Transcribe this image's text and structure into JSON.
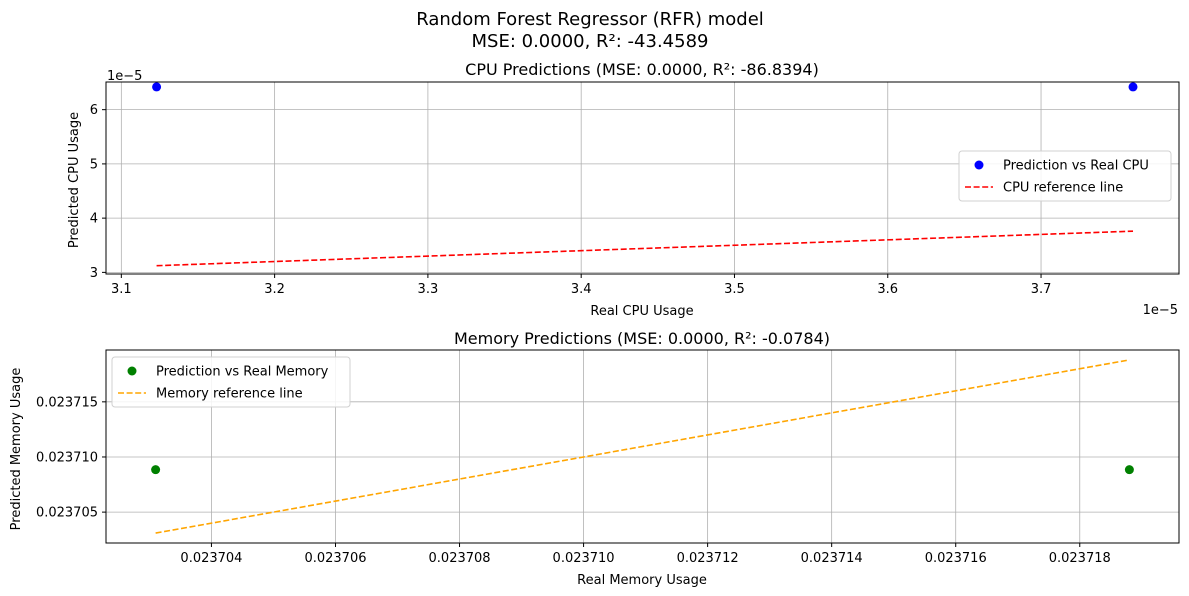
{
  "figure": {
    "title_line1": "Random Forest Regressor (RFR) model",
    "title_line2": "MSE: 0.0000, R²: -43.4589"
  },
  "chart_data": [
    {
      "type": "scatter",
      "title": "CPU Predictions (MSE: 0.0000, R²: -86.8394)",
      "xlabel": "Real CPU Usage",
      "ylabel": "Predicted CPU Usage",
      "x_scale_label": "1e−5",
      "y_scale_label": "1e−5",
      "xlim": [
        3.09,
        3.79
      ],
      "ylim": [
        2.97,
        6.51
      ],
      "x_ticks": [
        3.1,
        3.2,
        3.3,
        3.4,
        3.5,
        3.6,
        3.7
      ],
      "x_tick_labels": [
        "3.1",
        "3.2",
        "3.3",
        "3.4",
        "3.5",
        "3.6",
        "3.7"
      ],
      "y_ticks": [
        3,
        4,
        5,
        6
      ],
      "y_tick_labels": [
        "3",
        "4",
        "5",
        "6"
      ],
      "grid": true,
      "legend_position": "center-right",
      "series": [
        {
          "name": "Prediction vs Real CPU",
          "kind": "scatter",
          "color": "#0000ff",
          "x": [
            3.123,
            3.76
          ],
          "y": [
            6.42,
            6.42
          ]
        },
        {
          "name": "CPU reference line",
          "kind": "line",
          "style": "dashed",
          "color": "#ff0000",
          "x": [
            3.123,
            3.76
          ],
          "y": [
            3.123,
            3.76
          ]
        }
      ]
    },
    {
      "type": "scatter",
      "title": "Memory Predictions (MSE: 0.0000, R²: -0.0784)",
      "xlabel": "Real Memory Usage",
      "ylabel": "Predicted Memory Usage",
      "xlim": [
        0.0237023,
        0.0237196
      ],
      "ylim": [
        0.0237022,
        0.0237197
      ],
      "x_ticks": [
        0.023704,
        0.023706,
        0.023708,
        0.02371,
        0.023712,
        0.023714,
        0.023716,
        0.023718
      ],
      "x_tick_labels": [
        "0.023704",
        "0.023706",
        "0.023708",
        "0.023710",
        "0.023712",
        "0.023714",
        "0.023716",
        "0.023718"
      ],
      "y_ticks": [
        0.023705,
        0.02371,
        0.023715
      ],
      "y_tick_labels": [
        "0.023705",
        "0.023710",
        "0.023715"
      ],
      "grid": true,
      "legend_position": "upper-left",
      "series": [
        {
          "name": "Prediction vs Real Memory",
          "kind": "scatter",
          "color": "#008000",
          "x": [
            0.0237031,
            0.0237188
          ],
          "y": [
            0.02370885,
            0.02370885
          ]
        },
        {
          "name": "Memory reference line",
          "kind": "line",
          "style": "dashed",
          "color": "#ffa500",
          "x": [
            0.0237031,
            0.0237188
          ],
          "y": [
            0.0237031,
            0.0237188
          ]
        }
      ]
    }
  ]
}
